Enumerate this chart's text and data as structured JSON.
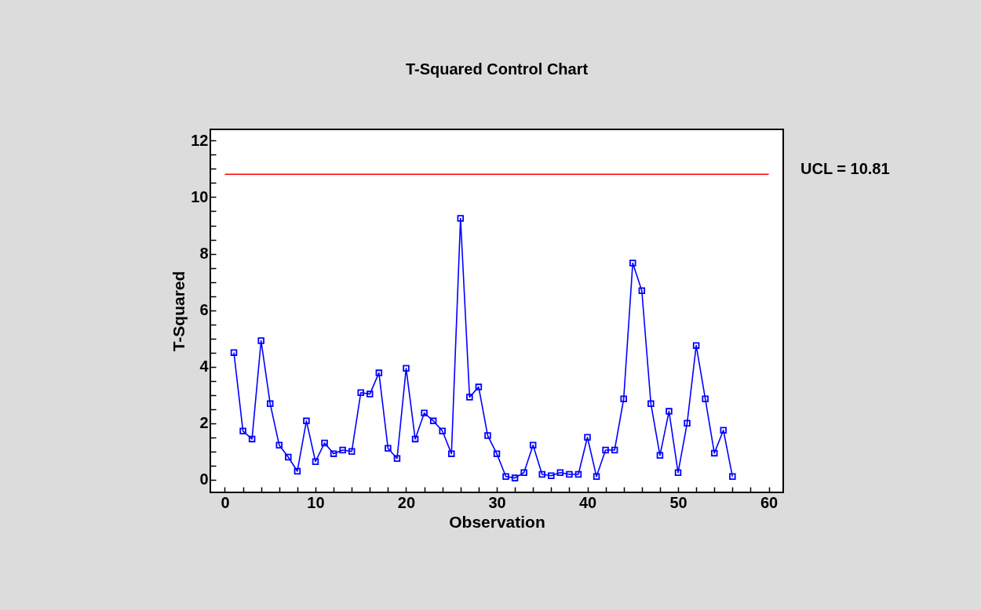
{
  "chart_data": {
    "type": "line",
    "title": "T-Squared Control Chart",
    "xlabel": "Observation",
    "ylabel": "T-Squared",
    "x": [
      1,
      2,
      3,
      4,
      5,
      6,
      7,
      8,
      9,
      10,
      11,
      12,
      13,
      14,
      15,
      16,
      17,
      18,
      19,
      20,
      21,
      22,
      23,
      24,
      25,
      26,
      27,
      28,
      29,
      30,
      31,
      32,
      33,
      34,
      35,
      36,
      37,
      38,
      39,
      40,
      41,
      42,
      43,
      44,
      45,
      46,
      47,
      48,
      49,
      50,
      51,
      52,
      53,
      54,
      55,
      56
    ],
    "series": [
      {
        "color": "#0000ff",
        "values": [
          4.5,
          1.72,
          1.44,
          4.92,
          2.69,
          1.22,
          0.8,
          0.3,
          2.08,
          0.64,
          1.3,
          0.92,
          1.05,
          1.0,
          3.08,
          3.03,
          3.78,
          1.11,
          0.75,
          3.94,
          1.44,
          2.36,
          2.08,
          1.72,
          0.92,
          9.25,
          2.92,
          3.28,
          1.56,
          0.92,
          0.11,
          0.06,
          0.25,
          1.22,
          0.19,
          0.14,
          0.25,
          0.19,
          0.19,
          1.5,
          0.11,
          1.05,
          1.05,
          2.86,
          7.67,
          6.69,
          2.69,
          0.86,
          2.42,
          0.25,
          2.0,
          4.75,
          2.86,
          0.94,
          1.75,
          0.11
        ]
      }
    ],
    "ref_lines": [
      {
        "axis": "y",
        "value": 10.81,
        "label": "UCL = 10.81",
        "color": "#ff0000"
      }
    ],
    "xlim": [
      -1.6,
      61.6
    ],
    "ylim": [
      -0.45,
      12.4
    ],
    "xticks": [
      0,
      {
        "value": 2,
        "label": null
      },
      {
        "value": 4,
        "label": null
      },
      {
        "value": 6,
        "label": null
      },
      {
        "value": 8,
        "label": null
      },
      10,
      {
        "value": 12,
        "label": null
      },
      {
        "value": 14,
        "label": null
      },
      {
        "value": 16,
        "label": null
      },
      {
        "value": 18,
        "label": null
      },
      20,
      {
        "value": 22,
        "label": null
      },
      {
        "value": 24,
        "label": null
      },
      {
        "value": 26,
        "label": null
      },
      {
        "value": 28,
        "label": null
      },
      30,
      {
        "value": 32,
        "label": null
      },
      {
        "value": 34,
        "label": null
      },
      {
        "value": 36,
        "label": null
      },
      {
        "value": 38,
        "label": null
      },
      40,
      {
        "value": 42,
        "label": null
      },
      {
        "value": 44,
        "label": null
      },
      {
        "value": 46,
        "label": null
      },
      {
        "value": 48,
        "label": null
      },
      50,
      {
        "value": 52,
        "label": null
      },
      {
        "value": 54,
        "label": null
      },
      {
        "value": 56,
        "label": null
      },
      {
        "value": 58,
        "label": null
      },
      60
    ],
    "yticks": [
      0,
      {
        "value": 0.5,
        "label": null
      },
      {
        "value": 1,
        "label": null
      },
      {
        "value": 1.5,
        "label": null
      },
      2,
      {
        "value": 2.5,
        "label": null
      },
      {
        "value": 3,
        "label": null
      },
      {
        "value": 3.5,
        "label": null
      },
      4,
      {
        "value": 4.5,
        "label": null
      },
      {
        "value": 5,
        "label": null
      },
      {
        "value": 5.5,
        "label": null
      },
      6,
      {
        "value": 6.5,
        "label": null
      },
      {
        "value": 7,
        "label": null
      },
      {
        "value": 7.5,
        "label": null
      },
      8,
      {
        "value": 8.5,
        "label": null
      },
      {
        "value": 9,
        "label": null
      },
      {
        "value": 9.5,
        "label": null
      },
      10,
      {
        "value": 10.5,
        "label": null
      },
      {
        "value": 11,
        "label": null
      },
      {
        "value": 11.5,
        "label": null
      },
      12
    ],
    "grid": false,
    "marker": "square",
    "line_style": "solid"
  }
}
